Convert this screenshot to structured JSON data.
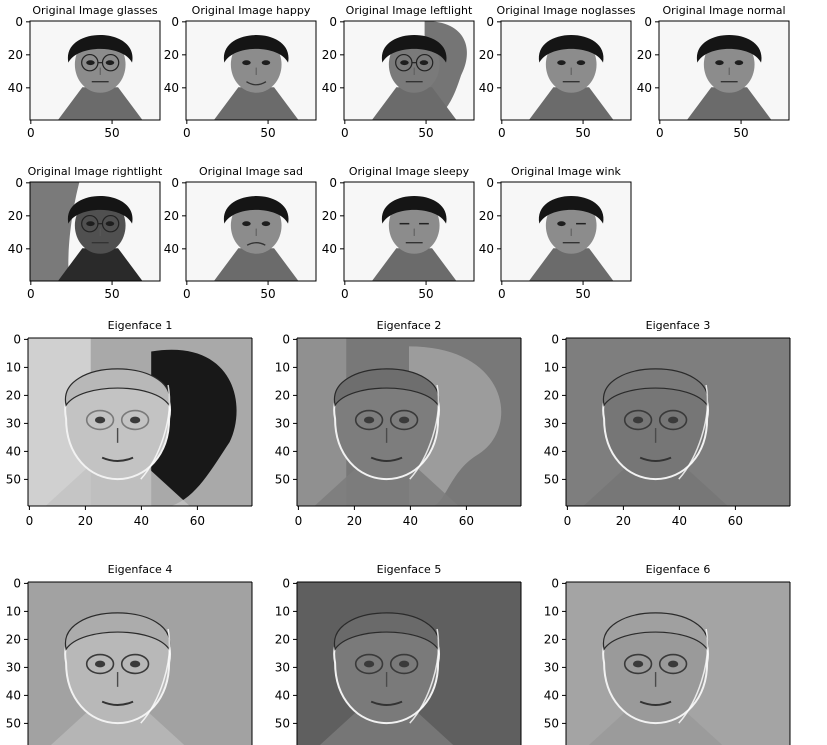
{
  "figure": {
    "original_panels": [
      {
        "title": "Original Image glasses",
        "variant": "glasses",
        "x_ticks": [
          "0",
          "50"
        ],
        "y_ticks": [
          "0",
          "20",
          "40"
        ]
      },
      {
        "title": "Original Image happy",
        "variant": "happy",
        "x_ticks": [
          "0",
          "50"
        ],
        "y_ticks": [
          "0",
          "20",
          "40"
        ]
      },
      {
        "title": "Original Image leftlight",
        "variant": "leftlight",
        "x_ticks": [
          "0",
          "50"
        ],
        "y_ticks": [
          "0",
          "20",
          "40"
        ]
      },
      {
        "title": "Original Image noglasses",
        "variant": "noglasses",
        "x_ticks": [
          "0",
          "50"
        ],
        "y_ticks": [
          "0",
          "20",
          "40"
        ]
      },
      {
        "title": "Original Image normal",
        "variant": "normal",
        "x_ticks": [
          "0",
          "50"
        ],
        "y_ticks": [
          "0",
          "20",
          "40"
        ]
      },
      {
        "title": "Original Image rightlight",
        "variant": "rightlight",
        "x_ticks": [
          "0",
          "50"
        ],
        "y_ticks": [
          "0",
          "20",
          "40"
        ]
      },
      {
        "title": "Original Image sad",
        "variant": "sad",
        "x_ticks": [
          "0",
          "50"
        ],
        "y_ticks": [
          "0",
          "20",
          "40"
        ]
      },
      {
        "title": "Original Image sleepy",
        "variant": "sleepy",
        "x_ticks": [
          "0",
          "50"
        ],
        "y_ticks": [
          "0",
          "20",
          "40"
        ]
      },
      {
        "title": "Original Image wink",
        "variant": "wink",
        "x_ticks": [
          "0",
          "50"
        ],
        "y_ticks": [
          "0",
          "20",
          "40"
        ]
      }
    ],
    "eigen_panels": [
      {
        "title": "Eigenface 1",
        "bg": "#a9a9a9",
        "skin": "#c3c3c3",
        "hair": "#b8b8b8",
        "shadow": "#181818",
        "x_ticks": [
          "0",
          "20",
          "40",
          "60"
        ],
        "y_ticks": [
          "0",
          "10",
          "20",
          "30",
          "40",
          "50"
        ]
      },
      {
        "title": "Eigenface 2",
        "bg": "#787878",
        "skin": "#7d7d7d",
        "hair": "#6e6e6e",
        "shadow": "#9c9c9c",
        "x_ticks": [
          "0",
          "20",
          "40",
          "60"
        ],
        "y_ticks": [
          "0",
          "10",
          "20",
          "30",
          "40",
          "50"
        ]
      },
      {
        "title": "Eigenface 3",
        "bg": "#7e7e7e",
        "skin": "#767676",
        "hair": "#7a7a7a",
        "shadow": "#858585",
        "x_ticks": [
          "0",
          "20",
          "40",
          "60"
        ],
        "y_ticks": [
          "0",
          "10",
          "20",
          "30",
          "40",
          "50"
        ]
      },
      {
        "title": "Eigenface 4",
        "bg": "#a2a2a2",
        "skin": "#b8b8b8",
        "hair": "#acacac",
        "shadow": "#a2a2a2",
        "x_ticks": [],
        "y_ticks": [
          "0",
          "10",
          "20",
          "30",
          "40",
          "50"
        ]
      },
      {
        "title": "Eigenface 5",
        "bg": "#5f5f5f",
        "skin": "#7a7a7a",
        "hair": "#6a6a6a",
        "shadow": "#5f5f5f",
        "x_ticks": [],
        "y_ticks": [
          "0",
          "10",
          "20",
          "30",
          "40",
          "50"
        ]
      },
      {
        "title": "Eigenface 6",
        "bg": "#a4a4a4",
        "skin": "#9a9a9a",
        "hair": "#a0a0a0",
        "shadow": "#a4a4a4",
        "x_ticks": [],
        "y_ticks": [
          "0",
          "10",
          "20",
          "30",
          "40",
          "50"
        ]
      }
    ]
  }
}
